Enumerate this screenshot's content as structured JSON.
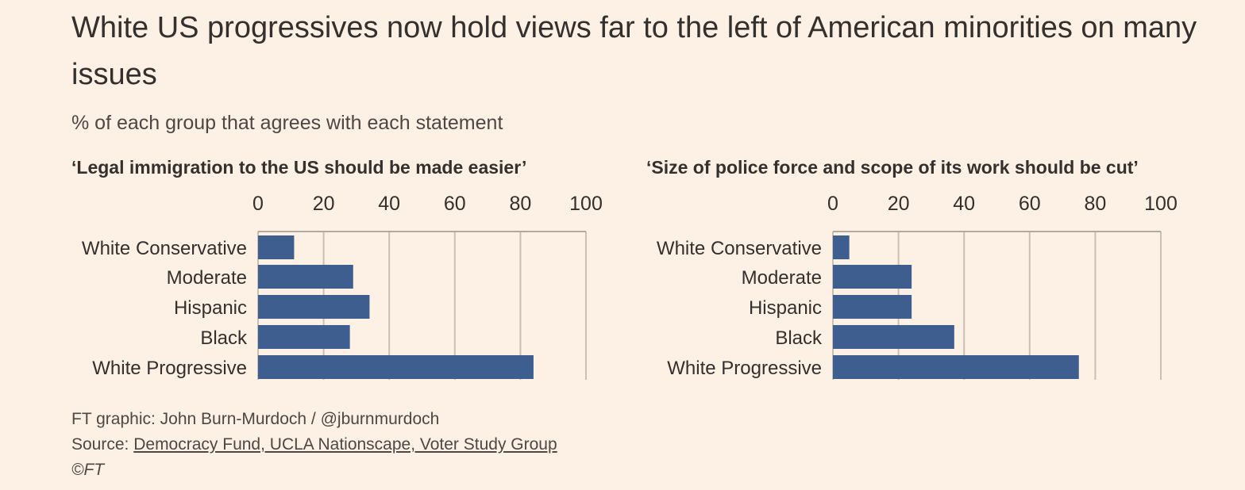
{
  "header": {
    "title": "White US progressives now hold views far to the left of American minorities on many issues",
    "subtitle": "% of each group that agrees with each statement"
  },
  "footer": {
    "credit": "FT graphic: John Burn-Murdoch / @jburnmurdoch",
    "source_prefix": "Source: ",
    "source_link": "Democracy Fund, UCLA Nationscape, Voter Study Group",
    "copyright": "©FT"
  },
  "colors": {
    "background": "#fdf0e4",
    "bar": "#3d5e8e",
    "grid": "#cbbeb4",
    "axis": "#b3a8a0",
    "text": "#33302e"
  },
  "chart_data": [
    {
      "type": "bar",
      "orientation": "horizontal",
      "title": "‘Legal immigration to the US should be made easier’",
      "categories": [
        "White Conservative",
        "Moderate",
        "Hispanic",
        "Black",
        "White Progressive"
      ],
      "values": [
        11,
        29,
        34,
        28,
        84
      ],
      "xlim": [
        0,
        100
      ],
      "ticks": [
        "0",
        "20",
        "40",
        "60",
        "80",
        "100"
      ],
      "grid": true
    },
    {
      "type": "bar",
      "orientation": "horizontal",
      "title": "‘Size of police force and scope of its work should be cut’",
      "categories": [
        "White Conservative",
        "Moderate",
        "Hispanic",
        "Black",
        "White Progressive"
      ],
      "values": [
        5,
        24,
        24,
        37,
        75
      ],
      "xlim": [
        0,
        100
      ],
      "ticks": [
        "0",
        "20",
        "40",
        "60",
        "80",
        "100"
      ],
      "grid": true
    }
  ]
}
